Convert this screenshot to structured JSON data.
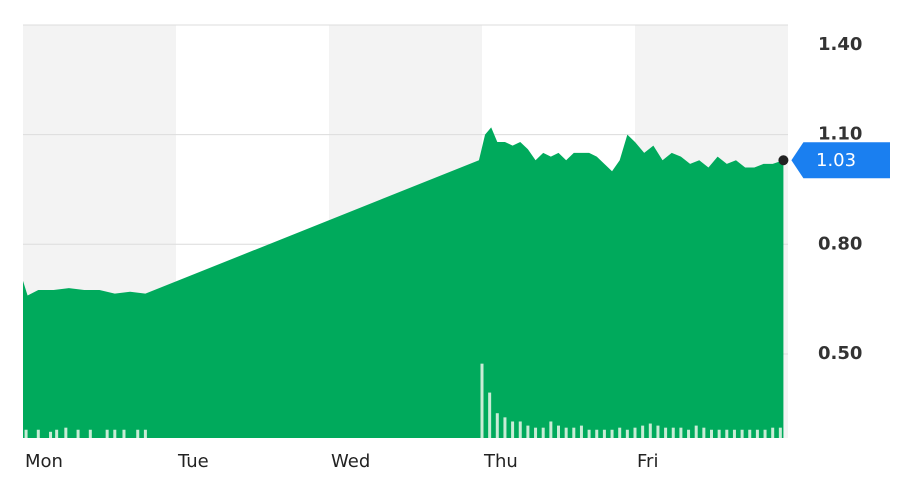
{
  "chart_data": {
    "type": "area",
    "xlim": [
      0,
      5
    ],
    "xticks": [
      {
        "value": 0,
        "label": "Mon"
      },
      {
        "value": 1,
        "label": "Tue"
      },
      {
        "value": 2,
        "label": "Wed"
      },
      {
        "value": 3,
        "label": "Thu"
      },
      {
        "value": 4,
        "label": "Fri"
      }
    ],
    "ylim": [
      0.27,
      1.4
    ],
    "yticks": [
      {
        "value": 1.4,
        "label": "1.40"
      },
      {
        "value": 1.1,
        "label": "1.10"
      },
      {
        "value": 0.8,
        "label": "0.80"
      },
      {
        "value": 0.5,
        "label": "0.50"
      }
    ],
    "y2lim": [
      0,
      100
    ],
    "grid": true,
    "current_value": 1.03,
    "current_color": "#1a7ff0",
    "series": [
      {
        "color": "#00aa5c",
        "x": [
          0,
          0.03,
          0.1,
          0.2,
          0.3,
          0.4,
          0.5,
          0.6,
          0.7,
          0.8,
          2.98,
          3.02,
          3.06,
          3.1,
          3.15,
          3.2,
          3.25,
          3.3,
          3.35,
          3.4,
          3.45,
          3.5,
          3.55,
          3.6,
          3.7,
          3.75,
          3.85,
          3.9,
          3.95,
          4.0,
          4.06,
          4.12,
          4.18,
          4.24,
          4.3,
          4.36,
          4.42,
          4.48,
          4.54,
          4.6,
          4.66,
          4.72,
          4.78,
          4.84,
          4.9,
          4.97
        ],
        "values": [
          0.7,
          0.66,
          0.675,
          0.675,
          0.68,
          0.675,
          0.675,
          0.665,
          0.67,
          0.665,
          1.03,
          1.1,
          1.12,
          1.08,
          1.08,
          1.07,
          1.08,
          1.06,
          1.03,
          1.05,
          1.04,
          1.05,
          1.03,
          1.05,
          1.05,
          1.04,
          1.0,
          1.03,
          1.1,
          1.08,
          1.05,
          1.07,
          1.03,
          1.05,
          1.04,
          1.02,
          1.03,
          1.01,
          1.04,
          1.02,
          1.03,
          1.01,
          1.01,
          1.02,
          1.02,
          1.03
        ]
      },
      {
        "color": "#c9ecd6",
        "axis": "y2",
        "x": [
          0.02,
          0.1,
          0.18,
          0.22,
          0.28,
          0.36,
          0.44,
          0.55,
          0.6,
          0.66,
          0.75,
          0.8,
          3.0,
          3.05,
          3.1,
          3.15,
          3.2,
          3.25,
          3.3,
          3.35,
          3.4,
          3.45,
          3.5,
          3.55,
          3.6,
          3.65,
          3.7,
          3.75,
          3.8,
          3.85,
          3.9,
          3.95,
          4.0,
          4.05,
          4.1,
          4.15,
          4.2,
          4.25,
          4.3,
          4.35,
          4.4,
          4.45,
          4.5,
          4.55,
          4.6,
          4.65,
          4.7,
          4.75,
          4.8,
          4.85,
          4.9,
          4.95
        ],
        "values": [
          2,
          2,
          1.5,
          2,
          2.5,
          2,
          2,
          2,
          2,
          2,
          2,
          2,
          18,
          11,
          6,
          5,
          4,
          4,
          3,
          2.5,
          2.5,
          4,
          3,
          2.5,
          2.5,
          3,
          2,
          2,
          2,
          2,
          2.5,
          2,
          2.5,
          3,
          3.5,
          3,
          2.5,
          2.5,
          2.5,
          2,
          3,
          2.5,
          2,
          2,
          2,
          2,
          2,
          2,
          2,
          2,
          2.5,
          2.5
        ]
      }
    ]
  }
}
